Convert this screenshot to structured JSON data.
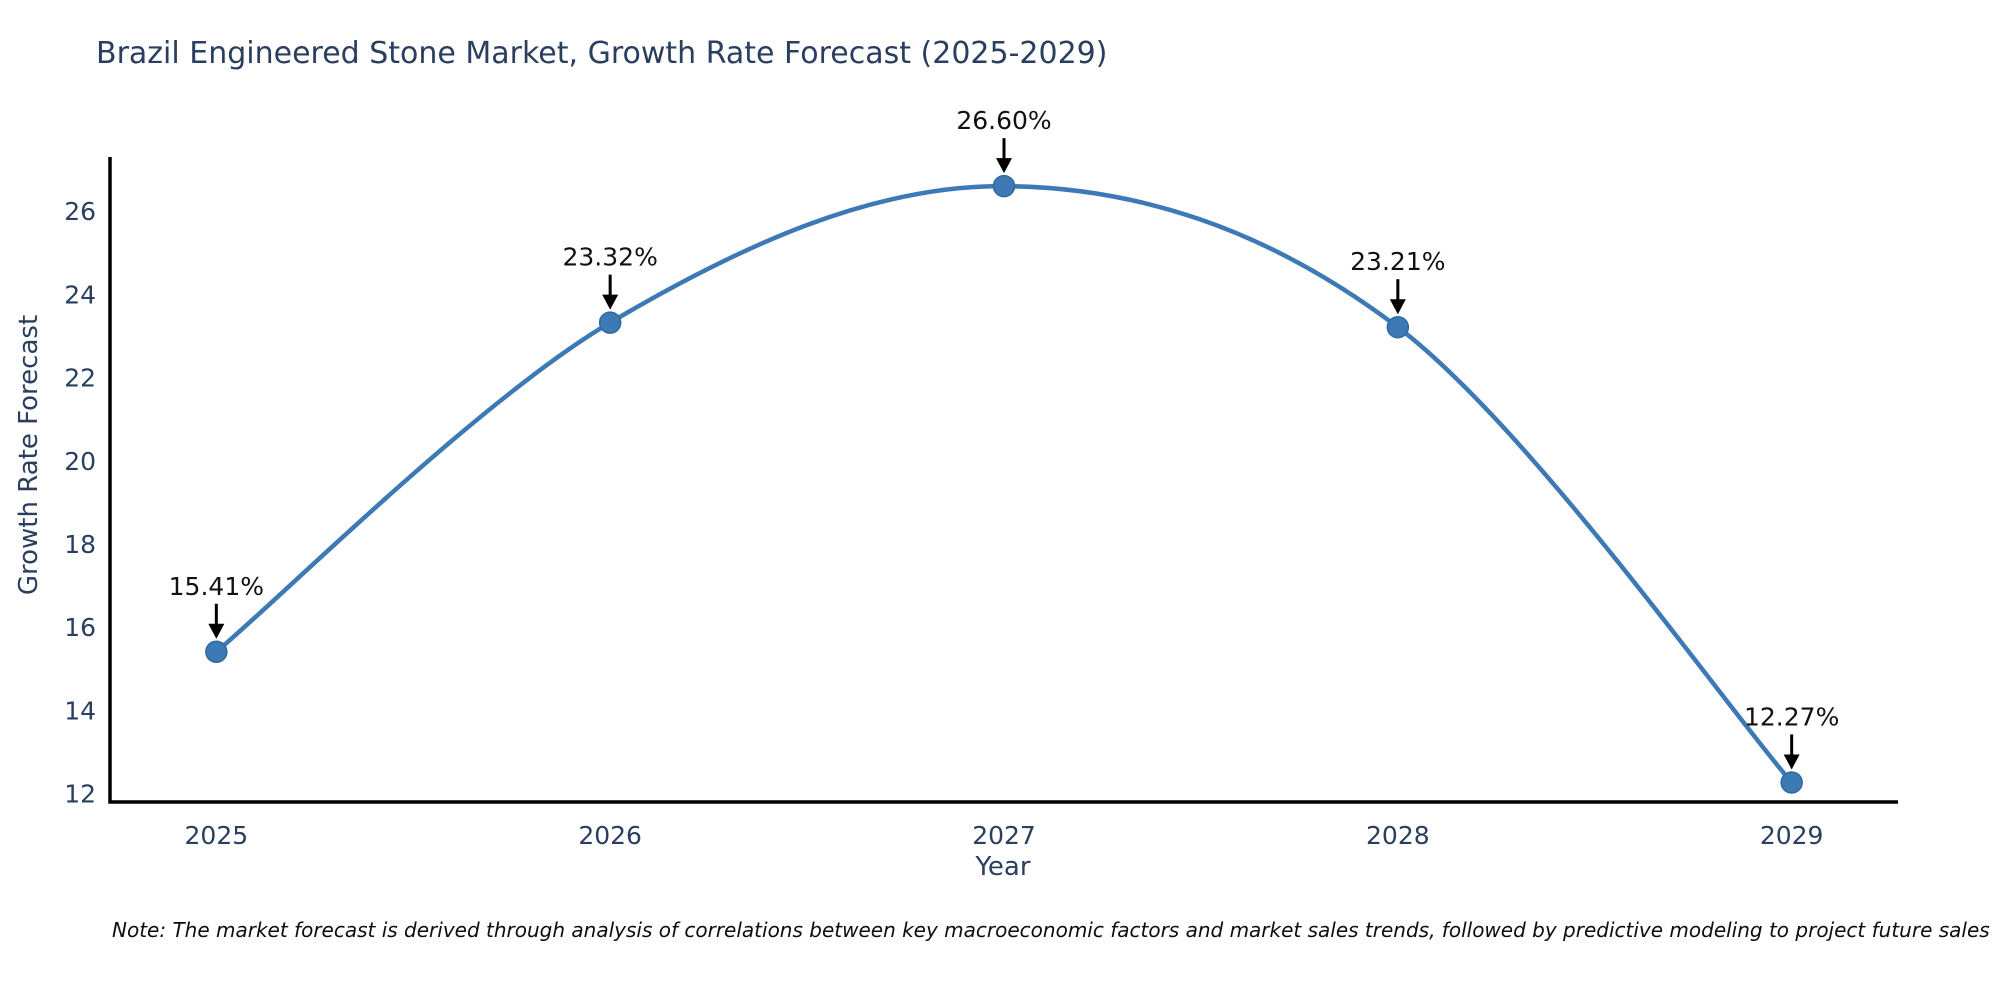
{
  "footnote": "Note: The market forecast is derived through analysis of correlations between key macroeconomic factors and market sales trends, followed by predictive modeling to project future sales",
  "chart_data": {
    "type": "line",
    "title": "Brazil Engineered Stone Market, Growth Rate Forecast (2025-2029)",
    "xlabel": "Year",
    "ylabel": "Growth Rate Forecast",
    "x": [
      2025,
      2026,
      2027,
      2028,
      2029
    ],
    "values": [
      15.41,
      23.32,
      26.6,
      23.21,
      12.27
    ],
    "point_labels": [
      "15.41%",
      "23.32%",
      "26.60%",
      "23.21%",
      "12.27%"
    ],
    "xtick_labels": [
      "2025",
      "2026",
      "2027",
      "2028",
      "2029"
    ],
    "yticks": [
      12,
      14,
      16,
      18,
      20,
      22,
      24,
      26
    ],
    "xlim": [
      2024.73,
      2029.27
    ],
    "ylim": [
      11.8,
      27.3
    ],
    "grid": false,
    "legend": "none",
    "line_shape": "spline",
    "annotation_style": "black-arrow-down",
    "colors": {
      "line": "#3d7ab5",
      "marker": "#3d7ab5",
      "marker_edge": "#2f6a9f",
      "axis": "#000000",
      "tick_text": "#2a3f5f",
      "title_text": "#2a3f5f",
      "annotation_text": "#111111",
      "annotation_arrow": "#000000",
      "background": "#ffffff"
    }
  }
}
